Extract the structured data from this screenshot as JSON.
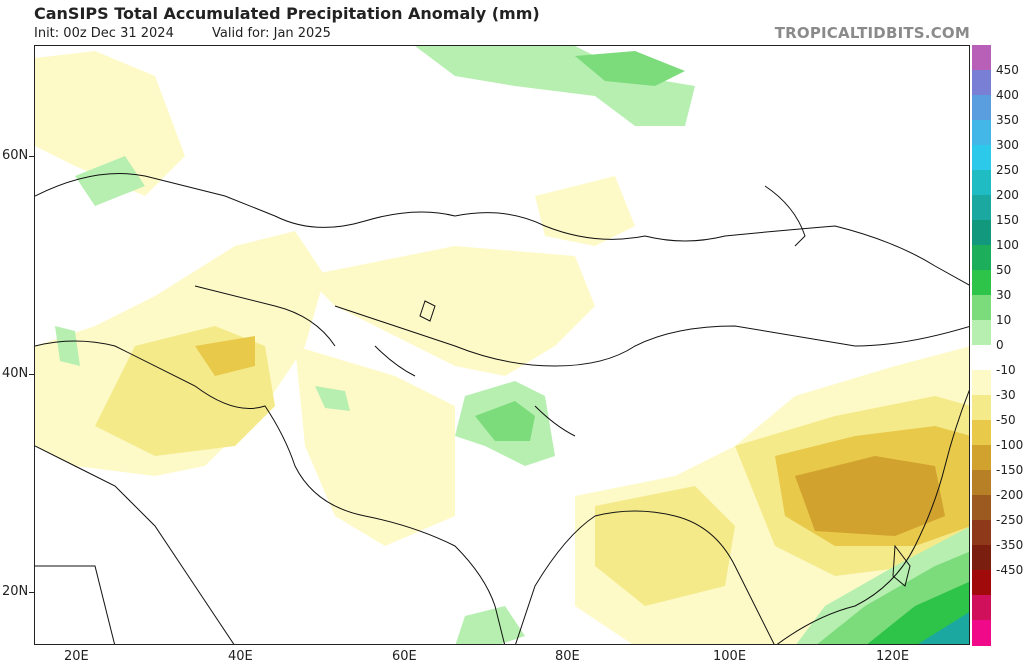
{
  "header": {
    "title": "CanSIPS Total Accumulated Precipitation Anomaly (mm)",
    "init": "Init: 00z Dec 31 2024",
    "valid": "Valid for: Jan 2025",
    "brand": "TROPICALTIDBITS.COM"
  },
  "axes": {
    "lat_labels": [
      "60N",
      "40N",
      "20N"
    ],
    "lon_labels": [
      "20E",
      "40E",
      "60E",
      "80E",
      "100E",
      "120E"
    ]
  },
  "colorbar": {
    "labels": [
      "450",
      "400",
      "350",
      "300",
      "250",
      "200",
      "150",
      "100",
      "50",
      "30",
      "10",
      "0",
      "-10",
      "-30",
      "-50",
      "-100",
      "-150",
      "-200",
      "-250",
      "-350",
      "-450"
    ],
    "colors": [
      "#b85fb8",
      "#7a7fd6",
      "#5a9ee0",
      "#43b8e8",
      "#2cc9ea",
      "#20bcc4",
      "#1aa8a0",
      "#12987c",
      "#1cae5a",
      "#2ec44a",
      "#7cdc7c",
      "#b6efb0",
      "#ffffff",
      "#fefac8",
      "#f5ea8a",
      "#e8c94a",
      "#d2a22e",
      "#b88026",
      "#9c5a20",
      "#8e3a1a",
      "#7a1e10",
      "#a00a0a",
      "#d0105a",
      "#f00a8a"
    ]
  }
}
